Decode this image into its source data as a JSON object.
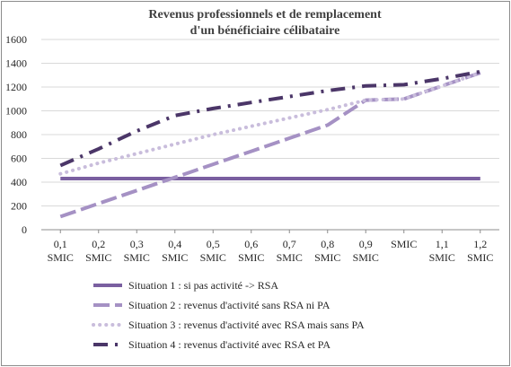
{
  "chart_data": {
    "type": "line",
    "title_lines": [
      "Revenus professionnels et de remplacement",
      "d'un bénéficiaire célibataire"
    ],
    "xlabel": "",
    "ylabel": "",
    "ylim": [
      0,
      1600
    ],
    "y_ticks": [
      0,
      200,
      400,
      600,
      800,
      1000,
      1200,
      1400,
      1600
    ],
    "grid": "horizontal",
    "legend_position": "bottom",
    "categories": [
      [
        "0,1",
        "SMIC"
      ],
      [
        "0,2",
        "SMIC"
      ],
      [
        "0,3",
        "SMIC"
      ],
      [
        "0,4",
        "SMIC"
      ],
      [
        "0,5",
        "SMIC"
      ],
      [
        "0,6",
        "SMIC"
      ],
      [
        "0,7",
        "SMIC"
      ],
      [
        "0,8",
        "SMIC"
      ],
      [
        "0,9",
        "SMIC"
      ],
      [
        "SMIC"
      ],
      [
        "1,1",
        "SMIC"
      ],
      [
        "1,2",
        "SMIC"
      ]
    ],
    "series": [
      {
        "name": "Situation 1 : si pas activité -> RSA",
        "color": "#7a5fa0",
        "style": "solid",
        "values": [
          430,
          430,
          430,
          430,
          430,
          430,
          430,
          430,
          430,
          430,
          430,
          430
        ]
      },
      {
        "name": "Situation 2 : revenus d'activité sans RSA ni PA",
        "color": "#a591c4",
        "style": "longdash",
        "values": [
          110,
          220,
          330,
          440,
          550,
          660,
          770,
          880,
          1090,
          1100,
          1210,
          1320
        ]
      },
      {
        "name": "Situation 3 : revenus d'activité avec RSA mais sans PA",
        "color": "#c9bddc",
        "style": "dot",
        "values": [
          470,
          560,
          640,
          720,
          800,
          870,
          940,
          1010,
          1090,
          1100,
          1210,
          1320
        ]
      },
      {
        "name": "Situation 4 : revenus d'activité avec RSA et PA",
        "color": "#4b3668",
        "style": "dashdot",
        "values": [
          540,
          680,
          830,
          960,
          1020,
          1070,
          1120,
          1170,
          1210,
          1220,
          1270,
          1330
        ]
      }
    ]
  }
}
